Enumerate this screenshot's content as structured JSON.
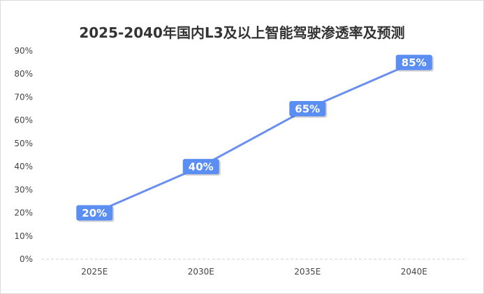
{
  "chart_data": {
    "type": "line",
    "title": "2025-2040年国内L3及以上智能驾驶渗透率及预测",
    "categories": [
      "2025E",
      "2030E",
      "2035E",
      "2040E"
    ],
    "series": [
      {
        "values": [
          20,
          40,
          65,
          85
        ]
      }
    ],
    "data_labels": [
      "20%",
      "40%",
      "65%",
      "85%"
    ],
    "yticks": [
      "0%",
      "10%",
      "20%",
      "30%",
      "40%",
      "50%",
      "60%",
      "70%",
      "80%",
      "90%"
    ],
    "ylim": [
      0,
      90
    ],
    "xlabel": "",
    "ylabel": "",
    "grid": false,
    "colors": {
      "line": "#6a8ff0",
      "label_bg": "#5b8ef2",
      "baseline": "#d0d0d0"
    }
  }
}
